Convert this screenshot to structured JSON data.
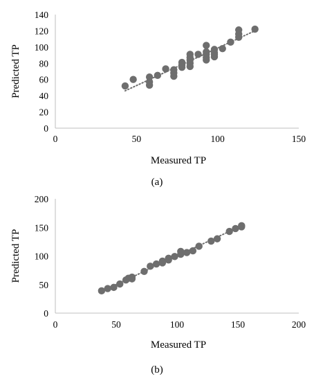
{
  "chart_data": [
    {
      "type": "scatter",
      "panel_label": "(a)",
      "xlabel": "Measured TP",
      "ylabel": "Predicted TP",
      "xlim": [
        0,
        150
      ],
      "ylim": [
        0,
        140
      ],
      "xticks": [
        "0",
        "50",
        "100",
        "150"
      ],
      "yticks": [
        "0",
        "20",
        "40",
        "60",
        "80",
        "100",
        "120",
        "140"
      ],
      "trendline": {
        "style": "dotted",
        "x": [
          43,
          123
        ],
        "y": [
          46,
          120
        ]
      },
      "colors": {
        "marker": "#6e6e6e",
        "trendline": "#6e6e6e",
        "axis": "#bfbfbf"
      },
      "points": [
        [
          43,
          52
        ],
        [
          48,
          60
        ],
        [
          58,
          53
        ],
        [
          58,
          57
        ],
        [
          58,
          63
        ],
        [
          63,
          65
        ],
        [
          68,
          73
        ],
        [
          73,
          64
        ],
        [
          73,
          68
        ],
        [
          73,
          72
        ],
        [
          78,
          75
        ],
        [
          78,
          78
        ],
        [
          78,
          81
        ],
        [
          83,
          76
        ],
        [
          83,
          80
        ],
        [
          83,
          84
        ],
        [
          83,
          87
        ],
        [
          83,
          91
        ],
        [
          88,
          91
        ],
        [
          93,
          84
        ],
        [
          93,
          87
        ],
        [
          93,
          91
        ],
        [
          93,
          94
        ],
        [
          93,
          102
        ],
        [
          98,
          88
        ],
        [
          98,
          91
        ],
        [
          98,
          93
        ],
        [
          98,
          97
        ],
        [
          103,
          98
        ],
        [
          108,
          106
        ],
        [
          113,
          112
        ],
        [
          113,
          116
        ],
        [
          113,
          121
        ],
        [
          123,
          122
        ]
      ]
    },
    {
      "type": "scatter",
      "panel_label": "(b)",
      "xlabel": "Measured TP",
      "ylabel": "Predicted TP",
      "xlim": [
        0,
        200
      ],
      "ylim": [
        0,
        200
      ],
      "xticks": [
        "0",
        "50",
        "100",
        "150",
        "200"
      ],
      "yticks": [
        "0",
        "50",
        "100",
        "150",
        "200"
      ],
      "trendline": {
        "style": "dotted",
        "x": [
          38,
          155
        ],
        "y": [
          38,
          155
        ]
      },
      "colors": {
        "marker": "#6e6e6e",
        "trendline": "#6e6e6e",
        "axis": "#bfbfbf"
      },
      "points": [
        [
          38,
          39
        ],
        [
          43,
          43
        ],
        [
          48,
          45
        ],
        [
          53,
          51
        ],
        [
          58,
          58
        ],
        [
          60,
          61
        ],
        [
          63,
          63
        ],
        [
          63,
          60
        ],
        [
          73,
          73
        ],
        [
          78,
          82
        ],
        [
          83,
          86
        ],
        [
          88,
          91
        ],
        [
          88,
          88
        ],
        [
          93,
          93
        ],
        [
          93,
          96
        ],
        [
          98,
          99
        ],
        [
          103,
          103
        ],
        [
          103,
          108
        ],
        [
          108,
          106
        ],
        [
          113,
          109
        ],
        [
          118,
          117
        ],
        [
          128,
          126
        ],
        [
          133,
          130
        ],
        [
          143,
          143
        ],
        [
          148,
          148
        ],
        [
          153,
          151
        ],
        [
          153,
          153
        ]
      ]
    }
  ]
}
